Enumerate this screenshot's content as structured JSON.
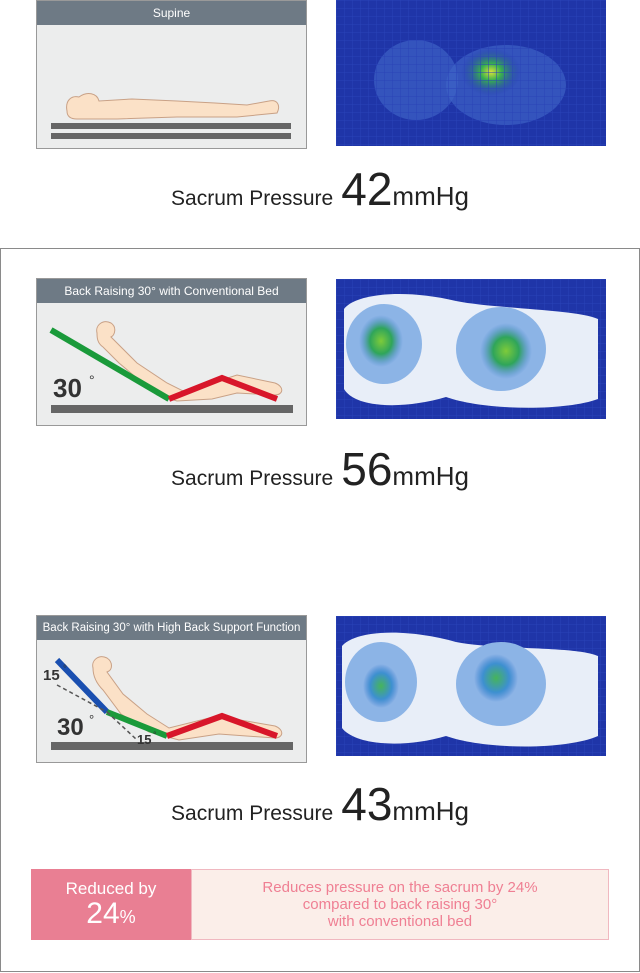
{
  "panels": {
    "supine": {
      "title": "Supine"
    },
    "conventional": {
      "title": "Back Raising 30° with Conventional Bed",
      "angle": "30"
    },
    "high_back": {
      "title": "Back Raising 30° with High Back Support Function",
      "angle_main": "30",
      "angle_top": "15",
      "angle_bottom": "15"
    }
  },
  "pressures": {
    "supine": {
      "label": "Sacrum Pressure",
      "value": "42",
      "unit": "mmHg"
    },
    "conventional": {
      "label": "Sacrum Pressure",
      "value": "56",
      "unit": "mmHg"
    },
    "high_back": {
      "label": "Sacrum Pressure",
      "value": "43",
      "unit": "mmHg"
    }
  },
  "banner": {
    "reduced_label": "Reduced by",
    "reduced_value": "24",
    "reduced_unit": "%",
    "description_line1": "Reduces pressure on the sacrum by 24%",
    "description_line2": "compared to back raising 30°",
    "description_line3": "with conventional bed"
  },
  "colors": {
    "header_gray": "#6e7a85",
    "heatmap_blue": "#1f35a8",
    "accent_pink": "#e97f93",
    "banner_bg": "#fbeee9",
    "back_green": "#1a9a3a",
    "leg_red": "#d8162a",
    "upper_blue": "#1a4fb0"
  }
}
